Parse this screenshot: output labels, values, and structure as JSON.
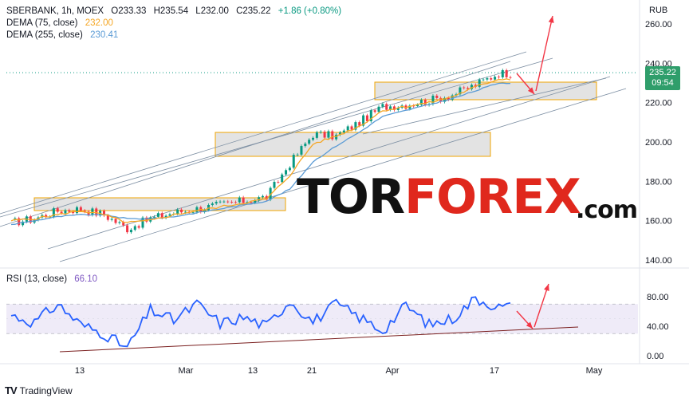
{
  "legend": {
    "main": {
      "symbol": "SBERBANK, 1h, MOEX",
      "open": "O233.33",
      "high": "H235.54",
      "low": "L232.00",
      "close": "C235.22",
      "change": "+1.86 (+0.80%)"
    },
    "dema75": {
      "label": "DEMA (75, close)",
      "value": "232.00"
    },
    "dema255": {
      "label": "DEMA (255, close)",
      "value": "230.41"
    },
    "rsi": {
      "label": "RSI (13, close)",
      "value": "66.10"
    }
  },
  "price_tag": {
    "price": "235.22",
    "time": "09:54"
  },
  "currency": "RUB",
  "watermark": {
    "part1": "TOR",
    "part2": "FOREX",
    "suffix": ".com"
  },
  "footer": {
    "brand": "TradingView"
  },
  "colors": {
    "up": "#089981",
    "dema75": "#f5a623",
    "dema255": "#5b9bd5",
    "rsi": "#2962ff",
    "arrow": "#f23645",
    "zone": "#f0a400",
    "channel": "#7d8fa3"
  },
  "chart_data": [
    {
      "type": "line",
      "title": "SBERBANK, 1h, MOEX",
      "ylabel": "RUB",
      "x_ticks": [
        "13",
        "Mar",
        "13",
        "21",
        "Apr",
        "17",
        "May"
      ],
      "y_ticks": [
        140,
        160,
        180,
        200,
        220,
        240,
        260
      ],
      "ylim": [
        136,
        266
      ],
      "series": [
        {
          "name": "SBERBANK",
          "x_index": [
            0,
            6,
            12,
            18,
            24,
            30,
            36,
            42,
            48,
            54,
            60,
            66,
            72,
            78,
            84,
            90,
            96,
            102,
            108,
            114,
            120,
            126
          ],
          "values": [
            159,
            161,
            165,
            166,
            163,
            156,
            161,
            164,
            166,
            168,
            170,
            172,
            189,
            204,
            203,
            210,
            218,
            219,
            221,
            224,
            229,
            235
          ]
        },
        {
          "name": "DEMA (75, close)",
          "values": [
            160,
            161,
            163,
            165,
            163,
            159,
            160,
            163,
            165,
            167,
            169,
            171,
            183,
            199,
            203,
            208,
            216,
            218,
            220,
            223,
            228,
            232
          ]
        },
        {
          "name": "DEMA (255, close)",
          "values": [
            158,
            160,
            162,
            163,
            163,
            161,
            161,
            162,
            164,
            166,
            168,
            170,
            176,
            190,
            198,
            205,
            213,
            216,
            219,
            222,
            226,
            230
          ]
        }
      ],
      "last_price": 235.22
    },
    {
      "type": "line",
      "title": "RSI (13, close)",
      "y_ticks": [
        0,
        40,
        80
      ],
      "ylim": [
        -5,
        100
      ],
      "band": [
        30,
        70
      ],
      "series": [
        {
          "name": "RSI (13, close)",
          "x_index": [
            0,
            6,
            12,
            18,
            24,
            30,
            36,
            42,
            48,
            54,
            60,
            66,
            72,
            78,
            84,
            90,
            96,
            102,
            108,
            114,
            120,
            126
          ],
          "values": [
            55,
            45,
            70,
            42,
            30,
            10,
            62,
            48,
            70,
            44,
            52,
            40,
            75,
            46,
            70,
            52,
            34,
            68,
            42,
            50,
            78,
            66
          ]
        }
      ],
      "last_value": 66.1
    }
  ]
}
